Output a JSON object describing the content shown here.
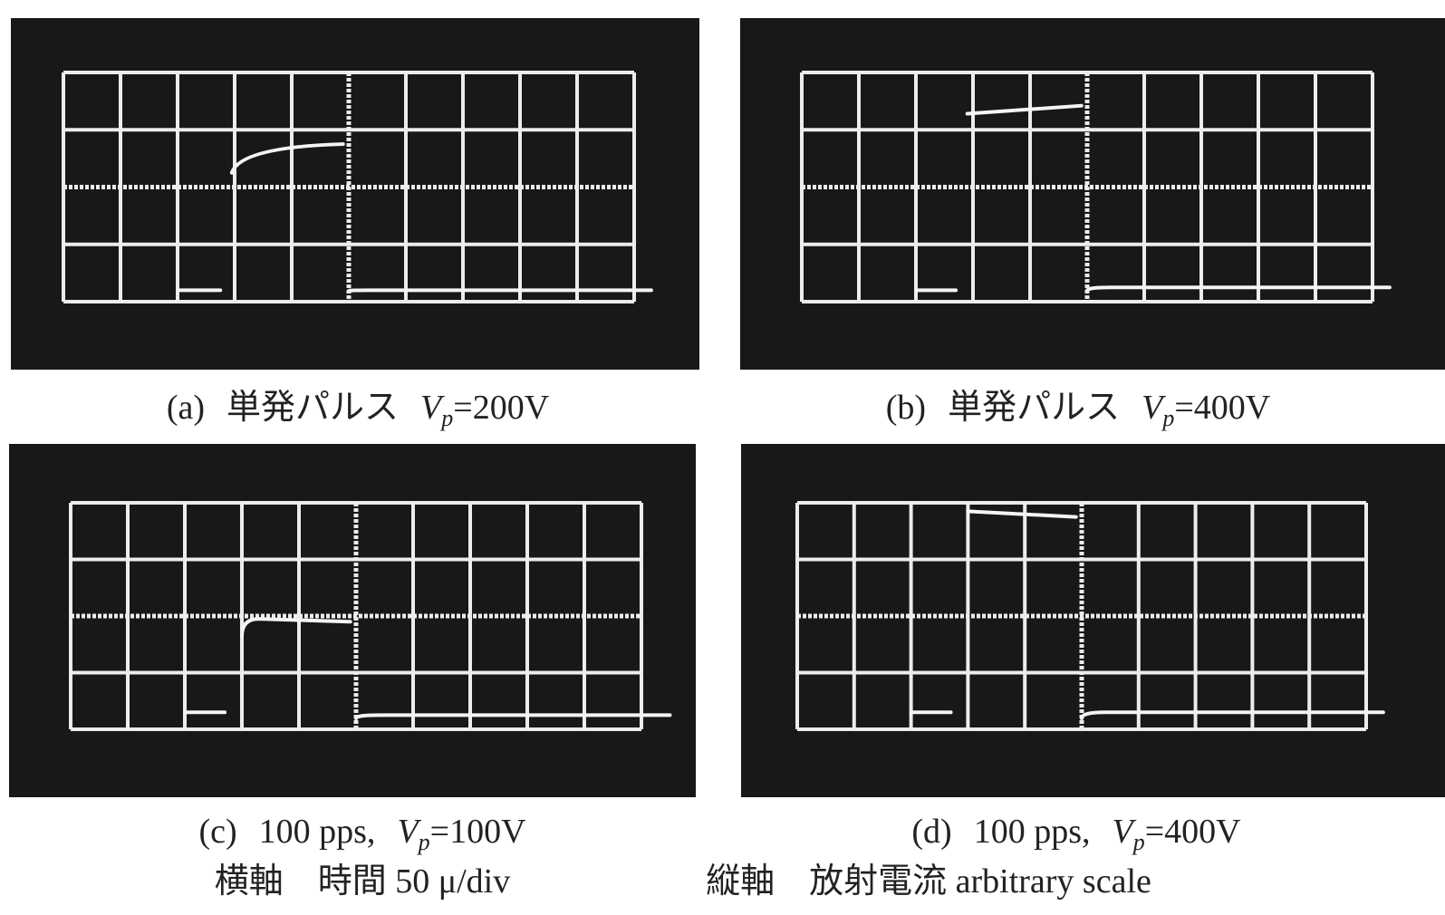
{
  "panels": [
    {
      "label": "(a)",
      "desc": "単発パルス",
      "var": "V",
      "sub": "p",
      "value": "=200V"
    },
    {
      "label": "(b)",
      "desc": "単発パルス",
      "var": "V",
      "sub": "p",
      "value": "=400V"
    },
    {
      "label": "(c)",
      "desc": "100 pps,",
      "var": "V",
      "sub": "p",
      "value": "=100V"
    },
    {
      "label": "(d)",
      "desc": "100 pps,",
      "var": "V",
      "sub": "p",
      "value": "=400V"
    }
  ],
  "footer": {
    "x_axis": "横軸　時間 50 μ/div",
    "y_axis": "縦軸　放射電流 arbitrary scale"
  }
}
